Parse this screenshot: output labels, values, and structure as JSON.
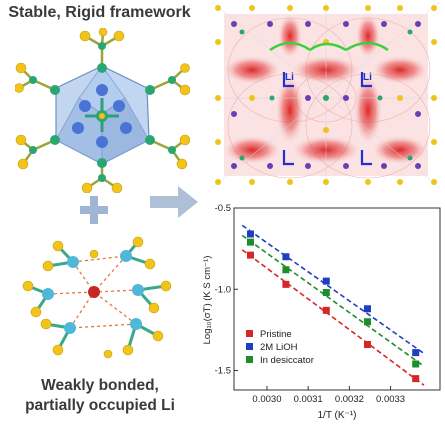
{
  "captions": {
    "top": "Stable, Rigid framework",
    "bottom_line1": "Weakly bonded,",
    "bottom_line2": "partially occupied Li"
  },
  "map_labels": {
    "li_left": "Li",
    "li_right": "Li"
  },
  "colors": {
    "pristine": "#d62728",
    "lioh": "#1f3fbf",
    "desiccator": "#1e8c2a",
    "arrow": "#aebfd6",
    "plus": "#9fb6d2"
  },
  "chart_data": {
    "type": "scatter",
    "xlabel": "1/T (K⁻¹)",
    "ylabel": "Log₁₀(σT) (K S cm⁻¹)",
    "xlim": [
      0.00292,
      0.00342
    ],
    "ylim": [
      -1.62,
      -0.5
    ],
    "xticks": [
      "0.0030",
      "0.0031",
      "0.0032",
      "0.0033"
    ],
    "xtick_values": [
      0.003,
      0.0031,
      0.0032,
      0.0033
    ],
    "yticks": [
      "-0.5",
      "-1.0",
      "-1.5"
    ],
    "ytick_values": [
      -0.5,
      -1.0,
      -1.5
    ],
    "legend_position": "bottom-left",
    "series": [
      {
        "name": "Pristine",
        "color": "#d62728",
        "x": [
          0.00296,
          0.003046,
          0.003144,
          0.003244,
          0.003361
        ],
        "y": [
          -0.79,
          -0.97,
          -1.13,
          -1.34,
          -1.55
        ]
      },
      {
        "name": "2M LiOH",
        "color": "#1f3fbf",
        "x": [
          0.00296,
          0.003046,
          0.003144,
          0.003244,
          0.003361
        ],
        "y": [
          -0.66,
          -0.8,
          -0.95,
          -1.12,
          -1.39
        ]
      },
      {
        "name": "In desiccator",
        "color": "#1e8c2a",
        "x": [
          0.00296,
          0.003046,
          0.003144,
          0.003244,
          0.003361
        ],
        "y": [
          -0.71,
          -0.88,
          -1.02,
          -1.2,
          -1.46
        ]
      }
    ]
  }
}
